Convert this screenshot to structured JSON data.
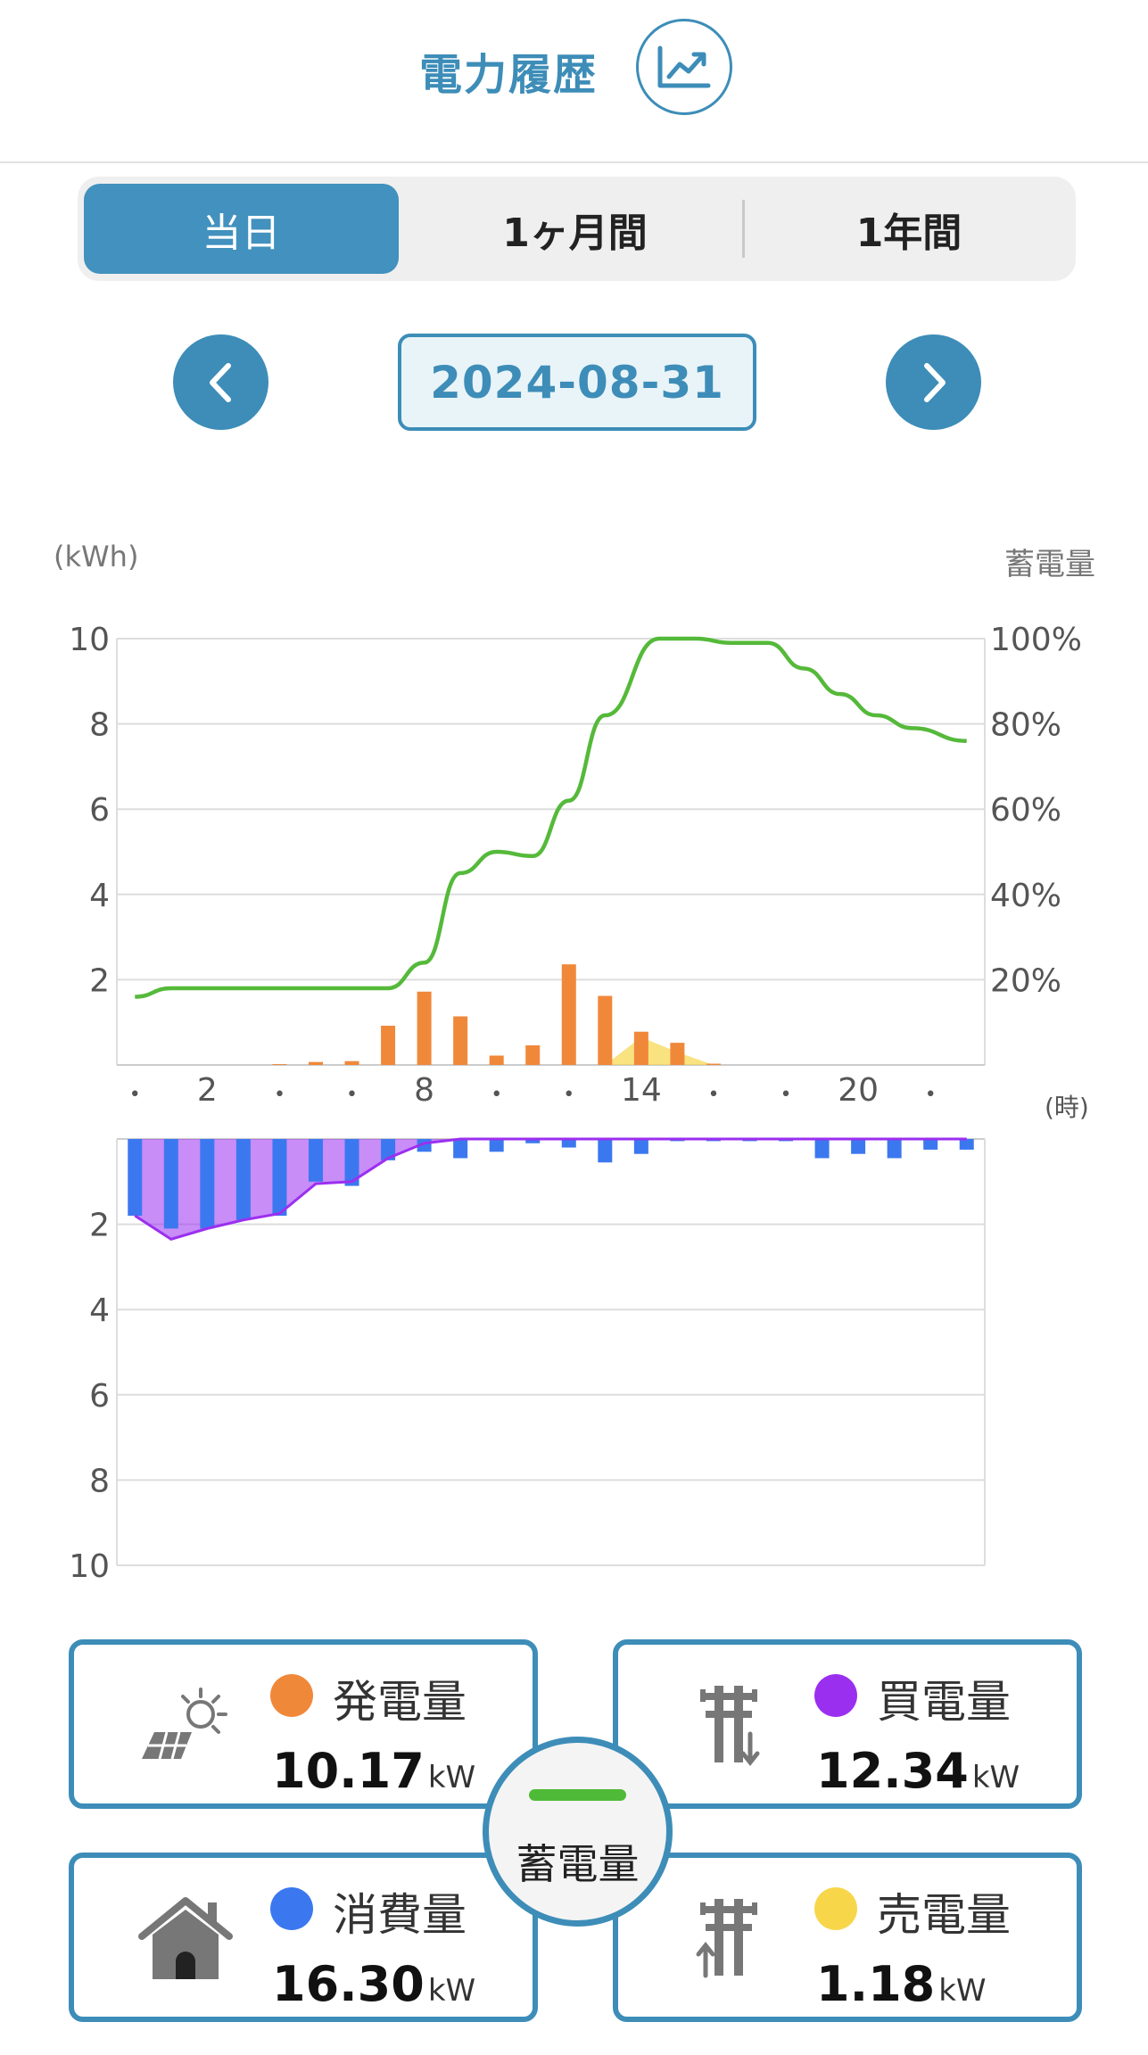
{
  "header": {
    "title": "電力履歴",
    "icon": "line-chart-icon"
  },
  "tabs": [
    {
      "label": "当日",
      "active": true
    },
    {
      "label": "1ヶ月間",
      "active": false
    },
    {
      "label": "1年間",
      "active": false
    }
  ],
  "date_nav": {
    "date": "2024-08-31",
    "prev_icon": "chevron-left-icon",
    "next_icon": "chevron-right-icon"
  },
  "chart_labels": {
    "left_unit": "(kWh)",
    "right_unit": "蓄電量",
    "hour_unit": "(時)"
  },
  "chart_data": {
    "type": "bar",
    "x_ticks": [
      "•",
      "2",
      "•",
      "•",
      "8",
      "•",
      "•",
      "14",
      "•",
      "•",
      "20",
      "•"
    ],
    "upper": {
      "ylim": [
        0,
        10
      ],
      "yticks": [
        "10",
        "8",
        "6",
        "4",
        "2"
      ],
      "right_ticks": [
        "100%",
        "80%",
        "60%",
        "40%",
        "20%"
      ],
      "generation_bars": [
        0,
        0,
        0,
        0,
        0.02,
        0.07,
        0.09,
        0.92,
        1.72,
        1.14,
        0.22,
        0.46,
        2.36,
        1.62,
        0.78,
        0.52,
        0.03,
        0,
        0,
        0,
        0,
        0,
        0,
        0
      ],
      "sell_area": [
        0,
        0,
        0,
        0,
        0,
        0,
        0,
        0,
        0,
        0,
        0,
        0,
        0,
        0,
        0.65,
        0.3,
        0,
        0,
        0,
        0,
        0,
        0,
        0,
        0
      ],
      "battery_percent_line": [
        16,
        18,
        18,
        18,
        18,
        18,
        18,
        18,
        24,
        45,
        50,
        49,
        62,
        82,
        100,
        100,
        99,
        99,
        93,
        87,
        82,
        79,
        76
      ],
      "battery_percent_x": [
        0.5,
        1.5,
        2.5,
        3.5,
        4.5,
        5.5,
        6.5,
        7.5,
        8.5,
        9.5,
        10.5,
        11.5,
        12.5,
        13.5,
        15,
        16,
        17,
        18,
        19,
        20,
        21,
        22,
        23.5
      ]
    },
    "lower": {
      "ylim": [
        0,
        10
      ],
      "yticks": [
        "2",
        "4",
        "6",
        "8",
        "10"
      ],
      "consumption_bars": [
        1.8,
        2.1,
        2.1,
        1.9,
        1.8,
        1.0,
        1.1,
        0.5,
        0.3,
        0.45,
        0.3,
        0.1,
        0.2,
        0.55,
        0.35,
        0.05,
        0.05,
        0.05,
        0.05,
        0.45,
        0.35,
        0.45,
        0.25,
        0.25
      ],
      "buy_area": [
        1.8,
        2.35,
        2.1,
        1.9,
        1.75,
        1.05,
        1.0,
        0.45,
        0.1,
        0,
        0,
        0,
        0,
        0,
        0,
        0,
        0,
        0,
        0,
        0,
        0,
        0,
        0,
        0
      ]
    },
    "colors": {
      "generation": "#f0883a",
      "battery": "#55b93a",
      "consumption": "#3b78f0",
      "buy": "#9b2ff0",
      "sell": "#f7d64a"
    }
  },
  "cards": {
    "generation": {
      "label": "発電量",
      "value": "10.17",
      "unit": "kW",
      "color": "#f0883a",
      "icon": "solar-panel-icon"
    },
    "buy": {
      "label": "買電量",
      "value": "12.34",
      "unit": "kW",
      "color": "#9b2ff0",
      "icon": "power-pole-buy-icon"
    },
    "consumption": {
      "label": "消費量",
      "value": "16.30",
      "unit": "kW",
      "color": "#3b78f0",
      "icon": "house-icon"
    },
    "sell": {
      "label": "売電量",
      "value": "1.18",
      "unit": "kW",
      "color": "#f7d64a",
      "icon": "power-pole-sell-icon"
    }
  },
  "center": {
    "label": "蓄電量",
    "color": "#4fba37"
  }
}
